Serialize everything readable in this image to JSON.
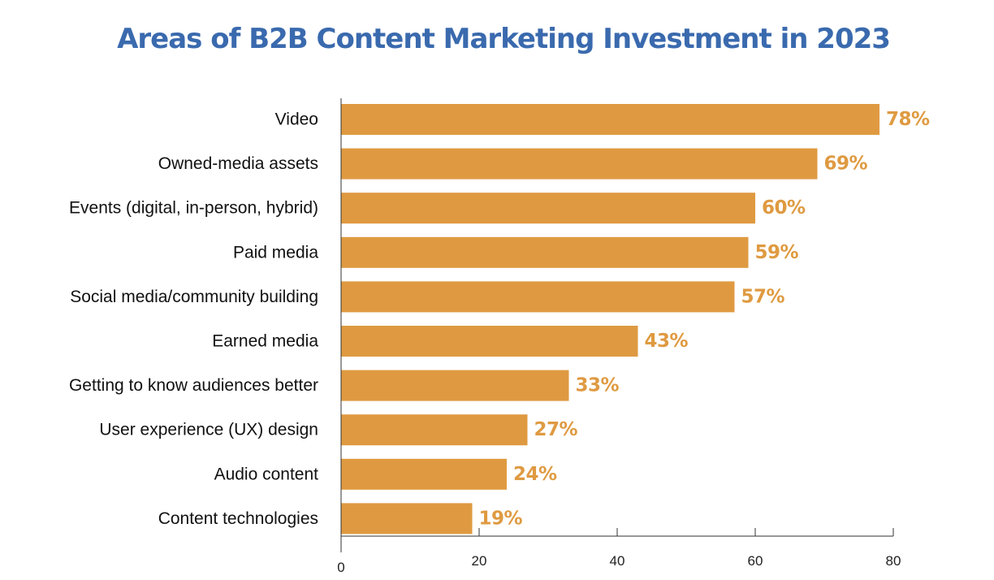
{
  "chart_data": {
    "type": "bar",
    "orientation": "horizontal",
    "title": "Areas of B2B Content Marketing Investment in 2023",
    "categories": [
      "Video",
      "Owned-media assets",
      "Events (digital, in-person, hybrid)",
      "Paid media",
      "Social media/community building",
      "Earned media",
      "Getting to know audiences better",
      "User experience (UX) design",
      "Audio content",
      "Content technologies"
    ],
    "values": [
      78,
      69,
      60,
      59,
      57,
      43,
      33,
      27,
      24,
      19
    ],
    "value_labels": [
      "78%",
      "69%",
      "60%",
      "59%",
      "57%",
      "43%",
      "33%",
      "27%",
      "24%",
      "19%"
    ],
    "xlim": [
      0,
      80
    ],
    "xticks": [
      0,
      20,
      40,
      60,
      80
    ],
    "xtick_labels": [
      "0",
      "20",
      "40",
      "60",
      "80"
    ],
    "xlabel": "",
    "ylabel": "",
    "grid": false,
    "legend": "none",
    "colors": {
      "bar": "#df9a41",
      "value_label": "#df9a41",
      "title": "#3a6aae",
      "axis": "#333333"
    }
  }
}
